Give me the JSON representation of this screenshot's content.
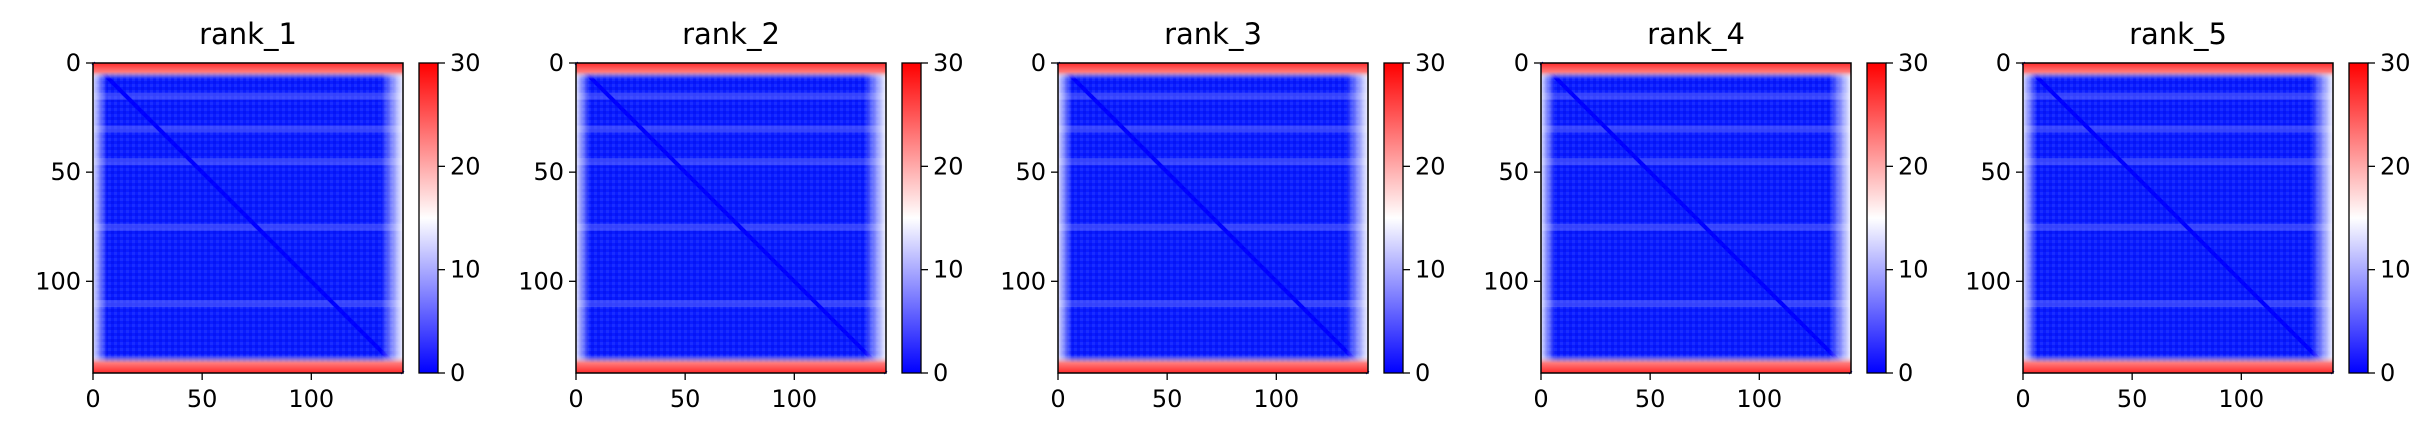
{
  "chart_data": [
    {
      "type": "heatmap",
      "title": "rank_1",
      "xlabel": "",
      "ylabel": "",
      "x_ticks": [
        0,
        50,
        100
      ],
      "y_ticks": [
        0,
        50,
        100
      ],
      "xlim": [
        0,
        142
      ],
      "ylim": [
        142,
        0
      ],
      "colorbar": {
        "ticks": [
          0,
          10,
          20,
          30
        ],
        "range": [
          0,
          30
        ]
      },
      "notes": "Pairwise error matrix; mostly low values (blue) with high values (red) in the first and last few rows; lighter horizontal bands near rows 15, 30, 45, 75, 110."
    },
    {
      "type": "heatmap",
      "title": "rank_2",
      "xlabel": "",
      "ylabel": "",
      "x_ticks": [
        0,
        50,
        100
      ],
      "y_ticks": [
        0,
        50,
        100
      ],
      "xlim": [
        0,
        142
      ],
      "ylim": [
        142,
        0
      ],
      "colorbar": {
        "ticks": [
          0,
          10,
          20,
          30
        ],
        "range": [
          0,
          30
        ]
      }
    },
    {
      "type": "heatmap",
      "title": "rank_3",
      "xlabel": "",
      "ylabel": "",
      "x_ticks": [
        0,
        50,
        100
      ],
      "y_ticks": [
        0,
        50,
        100
      ],
      "xlim": [
        0,
        142
      ],
      "ylim": [
        142,
        0
      ],
      "colorbar": {
        "ticks": [
          0,
          10,
          20,
          30
        ],
        "range": [
          0,
          30
        ]
      }
    },
    {
      "type": "heatmap",
      "title": "rank_4",
      "xlabel": "",
      "ylabel": "",
      "x_ticks": [
        0,
        50,
        100
      ],
      "y_ticks": [
        0,
        50,
        100
      ],
      "xlim": [
        0,
        142
      ],
      "ylim": [
        142,
        0
      ],
      "colorbar": {
        "ticks": [
          0,
          10,
          20,
          30
        ],
        "range": [
          0,
          30
        ]
      }
    },
    {
      "type": "heatmap",
      "title": "rank_5",
      "xlabel": "",
      "ylabel": "",
      "x_ticks": [
        0,
        50,
        100
      ],
      "y_ticks": [
        0,
        50,
        100
      ],
      "xlim": [
        0,
        142
      ],
      "ylim": [
        142,
        0
      ],
      "colorbar": {
        "ticks": [
          0,
          10,
          20,
          30
        ],
        "range": [
          0,
          30
        ]
      }
    }
  ],
  "colormap": {
    "low": "#0000ff",
    "mid": "#ffffff",
    "high": "#ff0000"
  }
}
